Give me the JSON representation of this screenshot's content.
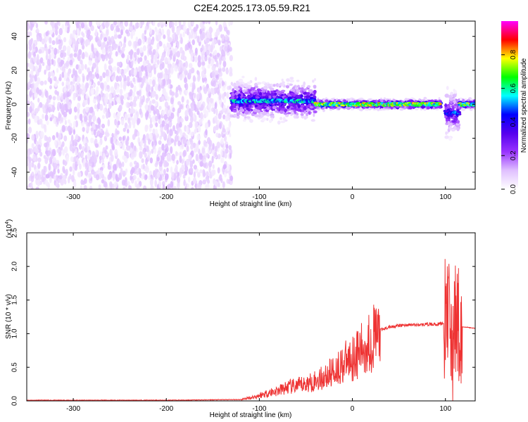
{
  "title": "C2E4.2025.173.05.59.R21",
  "chart_data": [
    {
      "type": "heatmap",
      "xlabel": "Height of straight line (km)",
      "ylabel": "Frequency (Hz)",
      "xlim": [
        -350,
        132
      ],
      "ylim": [
        -50,
        49
      ],
      "xticks": [
        -300,
        -200,
        -100,
        0,
        100
      ],
      "xtick_labels": [
        "-300",
        "-200",
        "-100",
        "0",
        "100"
      ],
      "yticks": [
        -40,
        -20,
        0,
        20,
        40
      ],
      "ytick_labels": [
        "-40",
        "-20",
        "0",
        "20",
        "40"
      ],
      "colorbar": {
        "label": "Normalized spectral amplitude",
        "range": [
          0,
          1
        ],
        "ticks": [
          0.0,
          0.2,
          0.4,
          0.6,
          0.8
        ],
        "tick_labels": [
          "0.0",
          "0.2",
          "0.4",
          "0.6",
          "0.8"
        ],
        "colormap": [
          "#ffffff",
          "#e0c0ff",
          "#9933ff",
          "#5500ee",
          "#0000ff",
          "#00ffff",
          "#00ff00",
          "#ffff00",
          "#ff0000",
          "#ff00ff"
        ]
      },
      "regions": [
        {
          "x_range": [
            -350,
            -130
          ],
          "freq_range": [
            -50,
            49
          ],
          "amplitude": 0.08,
          "note": "noise"
        },
        {
          "x_range": [
            -130,
            -40
          ],
          "center_freq": 2,
          "spread_hz": 10,
          "amplitude": 0.3
        },
        {
          "x_range": [
            -40,
            95
          ],
          "center_freq": 0,
          "spread_hz": 2.5,
          "amplitude": 0.4
        },
        {
          "x_range": [
            100,
            115
          ],
          "center_freq": -5,
          "spread_hz": 12,
          "amplitude": 0.25
        },
        {
          "x_range": [
            115,
            132
          ],
          "center_freq": 0,
          "spread_hz": 2.5,
          "amplitude": 0.4
        }
      ]
    },
    {
      "type": "line",
      "xlabel": "Height of straight line (km)",
      "ylabel": "SNR (10 * v/v)",
      "y_multiplier": "(x10",
      "y_multiplier_exp": "4",
      "xlim": [
        -350,
        132
      ],
      "ylim": [
        0,
        2.5
      ],
      "xticks": [
        -300,
        -200,
        -100,
        0,
        100
      ],
      "xtick_labels": [
        "-300",
        "-200",
        "-100",
        "0",
        "100"
      ],
      "yticks": [
        0.0,
        0.5,
        1.0,
        1.5,
        2.0,
        2.5
      ],
      "ytick_labels": [
        "0.0",
        "0.5",
        "1.0",
        "1.5",
        "2.0",
        "2.5"
      ],
      "series": [
        {
          "color": "#ee3333",
          "x": [
            -350,
            -200,
            -120,
            -105,
            -90,
            -80,
            -70,
            -60,
            -50,
            -40,
            -30,
            -20,
            -10,
            0,
            10,
            20,
            30,
            40,
            50,
            60,
            70,
            80,
            90,
            98,
            102,
            104,
            106,
            108,
            110,
            112,
            115,
            120,
            132
          ],
          "y": [
            0.01,
            0.01,
            0.02,
            0.06,
            0.12,
            0.15,
            0.2,
            0.22,
            0.25,
            0.3,
            0.35,
            0.45,
            0.55,
            0.65,
            0.75,
            0.9,
            1.05,
            1.1,
            1.12,
            1.13,
            1.13,
            1.14,
            1.14,
            1.15,
            1.3,
            1.6,
            0.9,
            0.5,
            1.3,
            1.2,
            1.1,
            1.1,
            1.08
          ]
        }
      ]
    }
  ]
}
